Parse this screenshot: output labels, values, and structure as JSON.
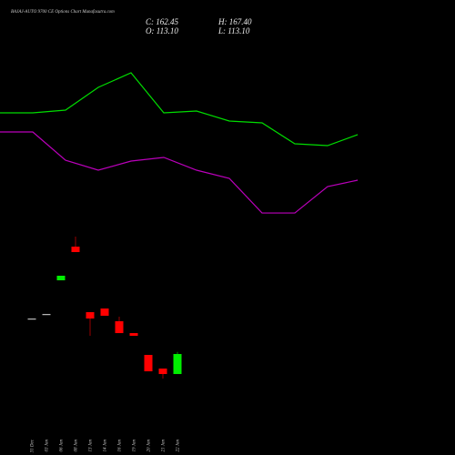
{
  "header": {
    "title": "BAJAJ-AUTO 9700  CE Options Chart Munafasutra.com",
    "close": "C: 162.45",
    "open": "O: 113.10",
    "high": "H: 167.40",
    "low": "L: 113.10"
  },
  "chart_data": [
    {
      "type": "candlestick",
      "categories": [
        "31 Dec",
        "03 Jan",
        "06 Jan",
        "08 Jan",
        "13 Jan",
        "14 Jan",
        "16 Jan",
        "19 Jan",
        "20 Jan",
        "21 Jan",
        "22 Jan"
      ],
      "open": [
        249.9,
        261.1,
        344.1,
        427.1,
        265.6,
        274.6,
        243.2,
        214.0,
        160.2,
        126.6,
        113.1
      ],
      "high": [
        249.9,
        261.1,
        355.4,
        451.8,
        265.6,
        274.6,
        254.4,
        214.0,
        160.2,
        126.6,
        167.4
      ],
      "low": [
        249.9,
        261.1,
        344.1,
        413.7,
        207.3,
        256.7,
        214.0,
        207.3,
        119.8,
        101.9,
        113.1
      ],
      "close": [
        249.9,
        261.1,
        355.4,
        413.7,
        249.9,
        256.7,
        214.0,
        207.3,
        119.8,
        113.1,
        162.45
      ],
      "up_color": "#00ee00",
      "down_color": "#ff0000",
      "flat_color": "#bbbbbb",
      "ylim": [
        -86.5,
        1035.06
      ]
    },
    {
      "type": "line",
      "x": [
        0,
        1,
        2,
        3,
        4,
        5,
        6,
        7,
        8,
        9,
        10,
        10.92
      ],
      "xlim": [
        0,
        13.89
      ],
      "series": [
        {
          "color": "#00dd00",
          "values": [
            756.9,
            756.9,
            763.6,
            819.7,
            855.6,
            756.9,
            761.4,
            736.7,
            732.2,
            680.6,
            676.1,
            703.1
          ]
        },
        {
          "color": "#bb00bb",
          "values": [
            709.8,
            709.8,
            640.2,
            615.6,
            638.0,
            647.0,
            615.6,
            595.4,
            510.0,
            510.0,
            575.2,
            590.9
          ]
        }
      ],
      "ylim": [
        -86.5,
        1035.06
      ]
    }
  ]
}
